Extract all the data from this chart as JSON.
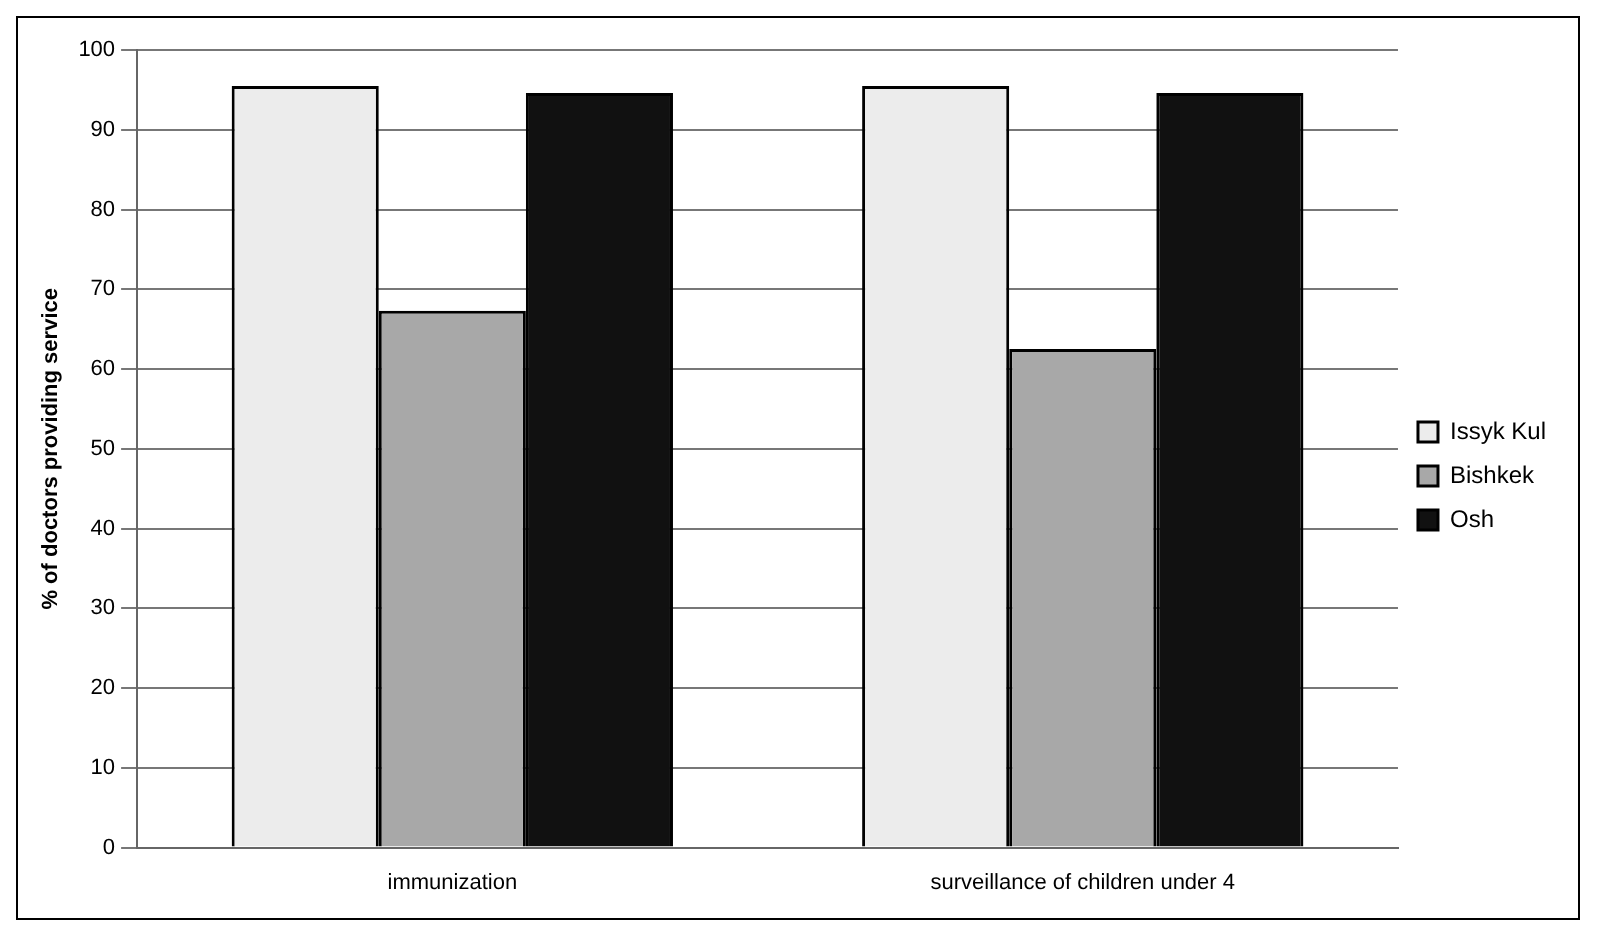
{
  "chart_data": {
    "type": "bar",
    "ylabel": "% of doctors providing service",
    "categories": [
      "immunization",
      "surveillance of children under 4"
    ],
    "series": [
      {
        "name": "Issyk Kul",
        "color": "#ececec",
        "values": [
          95.5,
          95.5
        ]
      },
      {
        "name": "Bishkek",
        "color": "#a8a8a8",
        "values": [
          67.3,
          62.5
        ]
      },
      {
        "name": "Osh",
        "color": "#111111",
        "values": [
          94.6,
          94.6
        ]
      }
    ],
    "ylim": [
      0,
      100
    ],
    "yticks": [
      0,
      10,
      20,
      30,
      40,
      50,
      60,
      70,
      80,
      90,
      100
    ],
    "grid": "y",
    "legend": "right"
  }
}
